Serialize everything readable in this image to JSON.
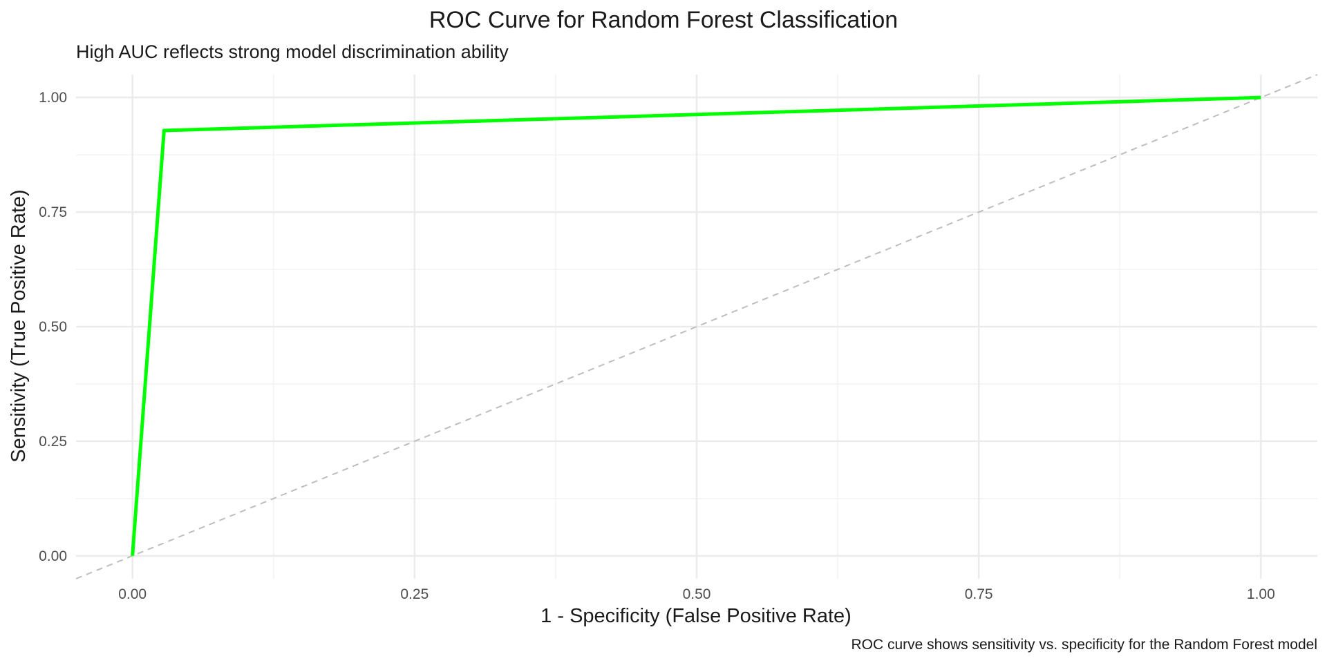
{
  "chart_data": {
    "type": "line",
    "title": "ROC Curve for Random Forest Classification",
    "subtitle": "High AUC reflects strong model discrimination ability",
    "xlabel": "1 - Specificity (False Positive Rate)",
    "ylabel": "Sensitivity (True Positive Rate)",
    "caption": "ROC curve shows sensitivity vs. specificity for the Random Forest model",
    "xlim": [
      -0.05,
      1.05
    ],
    "ylim": [
      -0.05,
      1.05
    ],
    "x_ticks": [
      0.0,
      0.25,
      0.5,
      0.75,
      1.0
    ],
    "x_tick_labels": [
      "0.00",
      "0.25",
      "0.50",
      "0.75",
      "1.00"
    ],
    "y_ticks": [
      0.0,
      0.25,
      0.5,
      0.75,
      1.0
    ],
    "y_tick_labels": [
      "0.00",
      "0.25",
      "0.50",
      "0.75",
      "1.00"
    ],
    "grid": true,
    "series": [
      {
        "x": [
          0.0,
          0.028,
          1.0
        ],
        "y": [
          0.0,
          0.928,
          1.0
        ],
        "color": "#00ff00",
        "style": "solid"
      }
    ],
    "reference_line": {
      "slope": 1,
      "intercept": 0,
      "color": "#bdbdbd",
      "style": "dashed"
    }
  },
  "colors": {
    "background": "#ffffff",
    "grid_major": "#ebebeb",
    "grid_minor": "#f2f2f2",
    "roc_line": "#00ff00",
    "reference_line": "#bdbdbd"
  }
}
